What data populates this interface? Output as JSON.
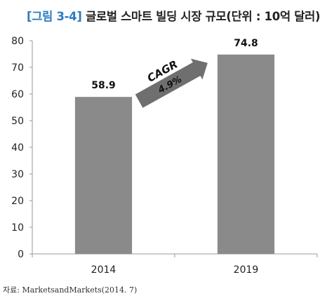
{
  "title_prefix": "[그림 3-4]",
  "title_text": "글로벌 스마트 빌딩 시장 규모(단위 : 10억 달러)",
  "source": "자료: MarketsandMarkets(2014. 7)",
  "colors": {
    "bar": "#8a8a8a",
    "arrow": "#6f6f6f",
    "axis": "#9a9a9a",
    "title_accent": "#2b7bbf"
  },
  "chart_data": {
    "type": "bar",
    "categories": [
      "2014",
      "2019"
    ],
    "values": [
      58.9,
      74.8
    ],
    "value_labels": [
      "58.9",
      "74.8"
    ],
    "yticks": [
      0,
      10,
      20,
      30,
      40,
      50,
      60,
      70,
      80
    ],
    "ylim": [
      0,
      80
    ],
    "grid": false,
    "annotation": {
      "label": "CAGR",
      "value": "4.9%",
      "style": "arrow",
      "direction": "up-right"
    }
  }
}
